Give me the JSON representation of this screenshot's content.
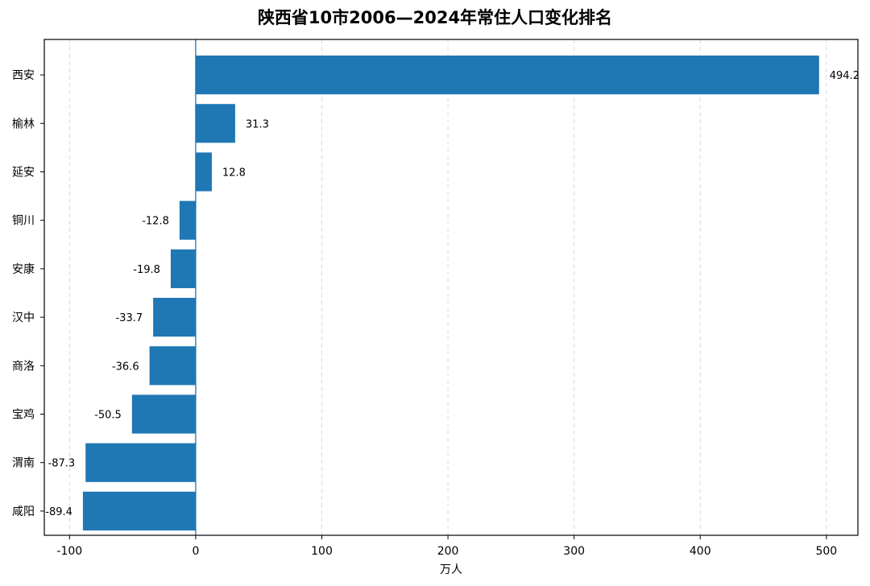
{
  "chart_data": {
    "type": "bar",
    "orientation": "horizontal",
    "title": "陕西省10市2006—2024年常住人口变化排名",
    "xlabel": "万人",
    "ylabel": "",
    "categories": [
      "西安",
      "榆林",
      "延安",
      "铜川",
      "安康",
      "汉中",
      "商洛",
      "宝鸡",
      "渭南",
      "咸阳"
    ],
    "values": [
      494.2,
      31.3,
      12.8,
      -12.8,
      -19.8,
      -33.7,
      -36.6,
      -50.5,
      -87.3,
      -89.4
    ],
    "value_labels": [
      "494.2",
      "31.3",
      "12.8",
      "-12.8",
      "-19.8",
      "-33.7",
      "-36.6",
      "-50.5",
      "-87.3",
      "-89.4"
    ],
    "xlim": [
      -120,
      525
    ],
    "xticks": [
      -100,
      0,
      100,
      200,
      300,
      400,
      500
    ],
    "xtick_labels": [
      "-100",
      "0",
      "100",
      "200",
      "300",
      "400",
      "500"
    ],
    "grid": "vertical dashed",
    "zero_line": true,
    "bar_color": "#1f77b4"
  }
}
